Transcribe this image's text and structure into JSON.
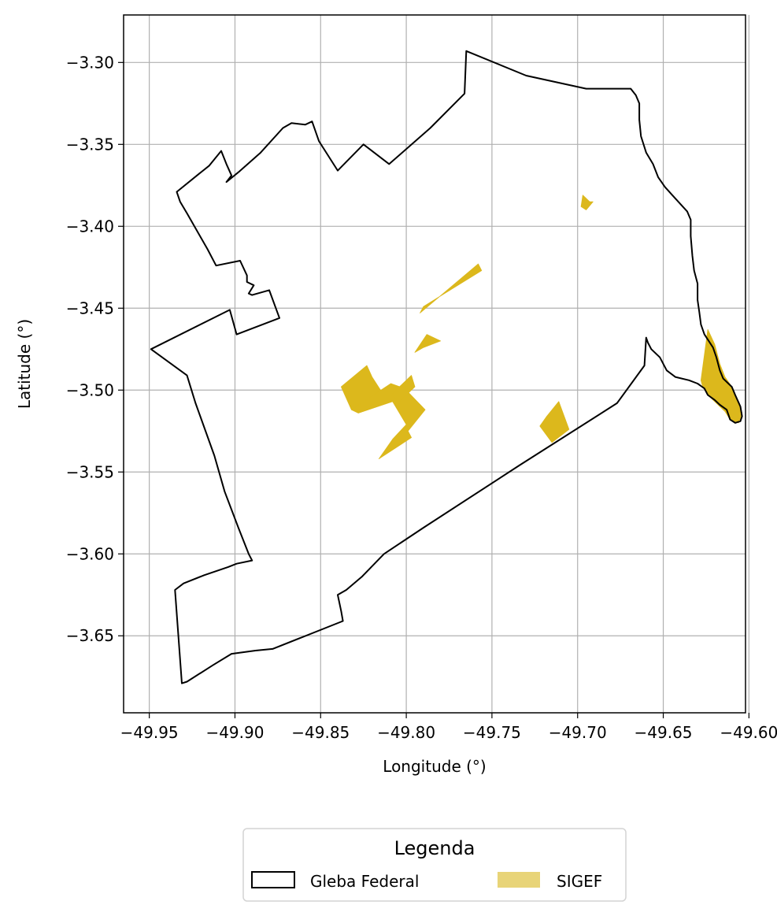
{
  "chart_data": {
    "type": "map",
    "xlabel": "Longitude (°)",
    "ylabel": "Latitude (°)",
    "xlim": [
      -49.965,
      -49.602
    ],
    "ylim": [
      -3.697,
      -3.271
    ],
    "grid": true,
    "x_ticks": [
      -49.95,
      -49.9,
      -49.85,
      -49.8,
      -49.75,
      -49.7,
      -49.65,
      -49.6
    ],
    "x_tick_labels": [
      "−49.95",
      "−49.90",
      "−49.85",
      "−49.80",
      "−49.75",
      "−49.70",
      "−49.65",
      "−49.60"
    ],
    "y_ticks": [
      -3.3,
      -3.35,
      -3.4,
      -3.45,
      -3.5,
      -3.55,
      -3.6,
      -3.65
    ],
    "y_tick_labels": [
      "−3.30",
      "−3.35",
      "−3.40",
      "−3.45",
      "−3.50",
      "−3.55",
      "−3.60",
      "−3.65"
    ],
    "legend": {
      "title": "Legenda",
      "placement": "bottom-center",
      "entries": [
        {
          "label": "Gleba Federal",
          "style": "outline",
          "color": "#000000"
        },
        {
          "label": "SIGEF",
          "style": "fill",
          "color": "#e8d478"
        }
      ]
    },
    "colors": {
      "gleba_stroke": "#000000",
      "sigef_fill": "#dcb81c",
      "grid": "#b0b0b0"
    },
    "gleba_federal": [
      [
        -49.765,
        -3.293
      ],
      [
        -49.73,
        -3.308
      ],
      [
        -49.695,
        -3.316
      ],
      [
        -49.669,
        -3.316
      ],
      [
        -49.666,
        -3.32
      ],
      [
        -49.664,
        -3.325
      ],
      [
        -49.664,
        -3.335
      ],
      [
        -49.663,
        -3.345
      ],
      [
        -49.66,
        -3.355
      ],
      [
        -49.656,
        -3.362
      ],
      [
        -49.653,
        -3.37
      ],
      [
        -49.649,
        -3.376
      ],
      [
        -49.643,
        -3.383
      ],
      [
        -49.636,
        -3.391
      ],
      [
        -49.634,
        -3.396
      ],
      [
        -49.634,
        -3.406
      ],
      [
        -49.633,
        -3.418
      ],
      [
        -49.632,
        -3.427
      ],
      [
        -49.63,
        -3.435
      ],
      [
        -49.63,
        -3.445
      ],
      [
        -49.629,
        -3.452
      ],
      [
        -49.628,
        -3.46
      ],
      [
        -49.626,
        -3.466
      ],
      [
        -49.621,
        -3.474
      ],
      [
        -49.619,
        -3.48
      ],
      [
        -49.617,
        -3.488
      ],
      [
        -49.615,
        -3.493
      ],
      [
        -49.61,
        -3.498
      ],
      [
        -49.608,
        -3.503
      ],
      [
        -49.605,
        -3.51
      ],
      [
        -49.604,
        -3.516
      ],
      [
        -49.605,
        -3.519
      ],
      [
        -49.608,
        -3.52
      ],
      [
        -49.611,
        -3.518
      ],
      [
        -49.613,
        -3.512
      ],
      [
        -49.617,
        -3.509
      ],
      [
        -49.62,
        -3.506
      ],
      [
        -49.624,
        -3.503
      ],
      [
        -49.626,
        -3.499
      ],
      [
        -49.63,
        -3.496
      ],
      [
        -49.635,
        -3.494
      ],
      [
        -49.643,
        -3.492
      ],
      [
        -49.648,
        -3.488
      ],
      [
        -49.652,
        -3.48
      ],
      [
        -49.657,
        -3.475
      ],
      [
        -49.659,
        -3.471
      ],
      [
        -49.66,
        -3.468
      ],
      [
        -49.661,
        -3.485
      ],
      [
        -49.677,
        -3.508
      ],
      [
        -49.734,
        -3.546
      ],
      [
        -49.79,
        -3.584
      ],
      [
        -49.813,
        -3.6
      ],
      [
        -49.826,
        -3.614
      ],
      [
        -49.835,
        -3.622
      ],
      [
        -49.84,
        -3.625
      ],
      [
        -49.838,
        -3.635
      ],
      [
        -49.837,
        -3.641
      ],
      [
        -49.878,
        -3.658
      ],
      [
        -49.888,
        -3.659
      ],
      [
        -49.902,
        -3.661
      ],
      [
        -49.913,
        -3.668
      ],
      [
        -49.928,
        -3.678
      ],
      [
        -49.931,
        -3.679
      ],
      [
        -49.935,
        -3.622
      ],
      [
        -49.93,
        -3.618
      ],
      [
        -49.918,
        -3.613
      ],
      [
        -49.904,
        -3.608
      ],
      [
        -49.899,
        -3.606
      ],
      [
        -49.89,
        -3.604
      ],
      [
        -49.892,
        -3.6
      ],
      [
        -49.898,
        -3.584
      ],
      [
        -49.906,
        -3.562
      ],
      [
        -49.912,
        -3.54
      ],
      [
        -49.923,
        -3.508
      ],
      [
        -49.928,
        -3.491
      ],
      [
        -49.949,
        -3.475
      ],
      [
        -49.903,
        -3.451
      ],
      [
        -49.899,
        -3.466
      ],
      [
        -49.874,
        -3.456
      ],
      [
        -49.88,
        -3.439
      ],
      [
        -49.89,
        -3.442
      ],
      [
        -49.892,
        -3.441
      ],
      [
        -49.889,
        -3.436
      ],
      [
        -49.893,
        -3.434
      ],
      [
        -49.893,
        -3.43
      ],
      [
        -49.897,
        -3.421
      ],
      [
        -49.911,
        -3.424
      ],
      [
        -49.916,
        -3.414
      ],
      [
        -49.928,
        -3.392
      ],
      [
        -49.932,
        -3.385
      ],
      [
        -49.934,
        -3.379
      ],
      [
        -49.921,
        -3.368
      ],
      [
        -49.915,
        -3.363
      ],
      [
        -49.908,
        -3.354
      ],
      [
        -49.905,
        -3.362
      ],
      [
        -49.902,
        -3.369
      ],
      [
        -49.905,
        -3.373
      ],
      [
        -49.898,
        -3.367
      ],
      [
        -49.885,
        -3.355
      ],
      [
        -49.872,
        -3.34
      ],
      [
        -49.867,
        -3.337
      ],
      [
        -49.859,
        -3.338
      ],
      [
        -49.855,
        -3.336
      ],
      [
        -49.851,
        -3.348
      ],
      [
        -49.84,
        -3.366
      ],
      [
        -49.825,
        -3.35
      ],
      [
        -49.81,
        -3.362
      ],
      [
        -49.786,
        -3.34
      ],
      [
        -49.766,
        -3.319
      ],
      [
        -49.765,
        -3.293
      ]
    ],
    "sigef_parcels": [
      [
        [
          -49.838,
          -3.498
        ],
        [
          -49.823,
          -3.485
        ],
        [
          -49.82,
          -3.492
        ],
        [
          -49.815,
          -3.5
        ],
        [
          -49.808,
          -3.507
        ],
        [
          -49.828,
          -3.514
        ],
        [
          -49.832,
          -3.512
        ]
      ],
      [
        [
          -49.832,
          -3.512
        ],
        [
          -49.828,
          -3.514
        ],
        [
          -49.808,
          -3.507
        ],
        [
          -49.8,
          -3.521
        ],
        [
          -49.808,
          -3.53
        ],
        [
          -49.816,
          -3.542
        ],
        [
          -49.797,
          -3.529
        ],
        [
          -49.799,
          -3.525
        ],
        [
          -49.789,
          -3.512
        ],
        [
          -49.801,
          -3.499
        ],
        [
          -49.809,
          -3.496
        ]
      ],
      [
        [
          -49.809,
          -3.503
        ],
        [
          -49.797,
          -3.491
        ],
        [
          -49.795,
          -3.498
        ],
        [
          -49.804,
          -3.507
        ]
      ],
      [
        [
          -49.795,
          -3.477
        ],
        [
          -49.788,
          -3.466
        ],
        [
          -49.78,
          -3.47
        ],
        [
          -49.79,
          -3.474
        ]
      ],
      [
        [
          -49.792,
          -3.453
        ],
        [
          -49.758,
          -3.423
        ],
        [
          -49.756,
          -3.427
        ],
        [
          -49.79,
          -3.449
        ]
      ],
      [
        [
          -49.697,
          -3.381
        ],
        [
          -49.693,
          -3.385
        ],
        [
          -49.691,
          -3.385
        ],
        [
          -49.695,
          -3.39
        ],
        [
          -49.698,
          -3.388
        ]
      ],
      [
        [
          -49.722,
          -3.522
        ],
        [
          -49.715,
          -3.532
        ],
        [
          -49.705,
          -3.524
        ],
        [
          -49.711,
          -3.507
        ],
        [
          -49.718,
          -3.516
        ]
      ],
      [
        [
          -49.628,
          -3.494
        ],
        [
          -49.624,
          -3.463
        ],
        [
          -49.62,
          -3.472
        ],
        [
          -49.617,
          -3.484
        ],
        [
          -49.614,
          -3.492
        ],
        [
          -49.61,
          -3.498
        ],
        [
          -49.607,
          -3.505
        ],
        [
          -49.604,
          -3.514
        ],
        [
          -49.606,
          -3.52
        ],
        [
          -49.611,
          -3.518
        ],
        [
          -49.614,
          -3.513
        ],
        [
          -49.619,
          -3.508
        ],
        [
          -49.624,
          -3.503
        ],
        [
          -49.627,
          -3.498
        ]
      ]
    ]
  }
}
